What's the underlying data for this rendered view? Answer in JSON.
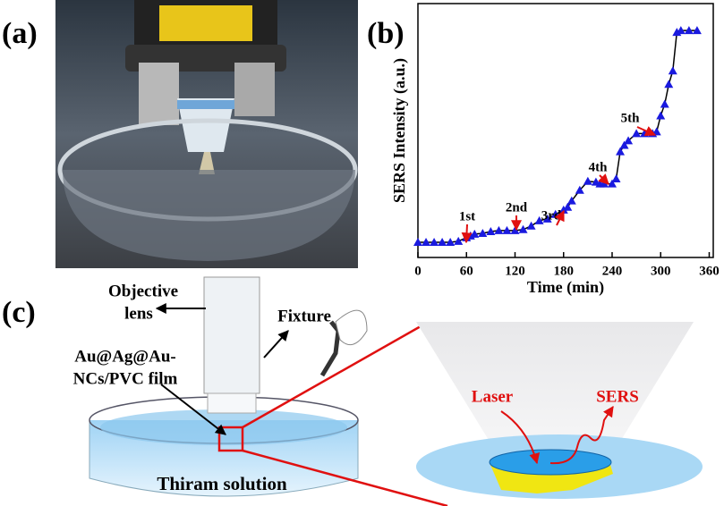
{
  "panel_a": {
    "label": "(a)"
  },
  "chart_data": {
    "type": "line",
    "panel_label": "(b)",
    "x_label": "Time (min)",
    "y_label": "SERS Intensity (a.u.)",
    "x": [
      0,
      10,
      20,
      30,
      40,
      50,
      60,
      65,
      70,
      80,
      90,
      100,
      110,
      120,
      130,
      140,
      150,
      160,
      170,
      180,
      185,
      190,
      200,
      210,
      220,
      225,
      230,
      240,
      245,
      250,
      255,
      260,
      270,
      280,
      290,
      295,
      300,
      305,
      310,
      315,
      320,
      325,
      335,
      345
    ],
    "series": [
      {
        "color": "#1a1adf",
        "line_color": "#000000",
        "values": [
          6,
          6,
          6,
          6,
          6,
          6.4,
          7.8,
          8.5,
          9.2,
          9.5,
          10.2,
          10.6,
          10.6,
          10.6,
          11,
          12.4,
          14.5,
          15.2,
          17,
          18.7,
          19.8,
          22.3,
          26.5,
          30,
          29.7,
          29,
          29,
          29,
          31,
          41.7,
          44.2,
          46,
          48.8,
          48.8,
          48.8,
          49.5,
          55.8,
          60.4,
          68.2,
          73.5,
          88.7,
          89.4,
          89.4,
          89.4
        ]
      }
    ],
    "xlim": [
      0,
      365
    ],
    "xticks": [
      0,
      60,
      120,
      180,
      240,
      300,
      360
    ],
    "ylim": [
      0,
      100
    ],
    "annotations": [
      "1st",
      "2nd",
      "3rd",
      "4th",
      "5th"
    ]
  },
  "panel_c": {
    "label": "(c)",
    "objective": "Objective",
    "lens": "lens",
    "fixture": "Fixture",
    "film_1": "Au@Ag@Au-",
    "film_2": "NCs/PVC film",
    "solution": "Thiram solution",
    "laser": "Laser",
    "sers": "SERS"
  }
}
